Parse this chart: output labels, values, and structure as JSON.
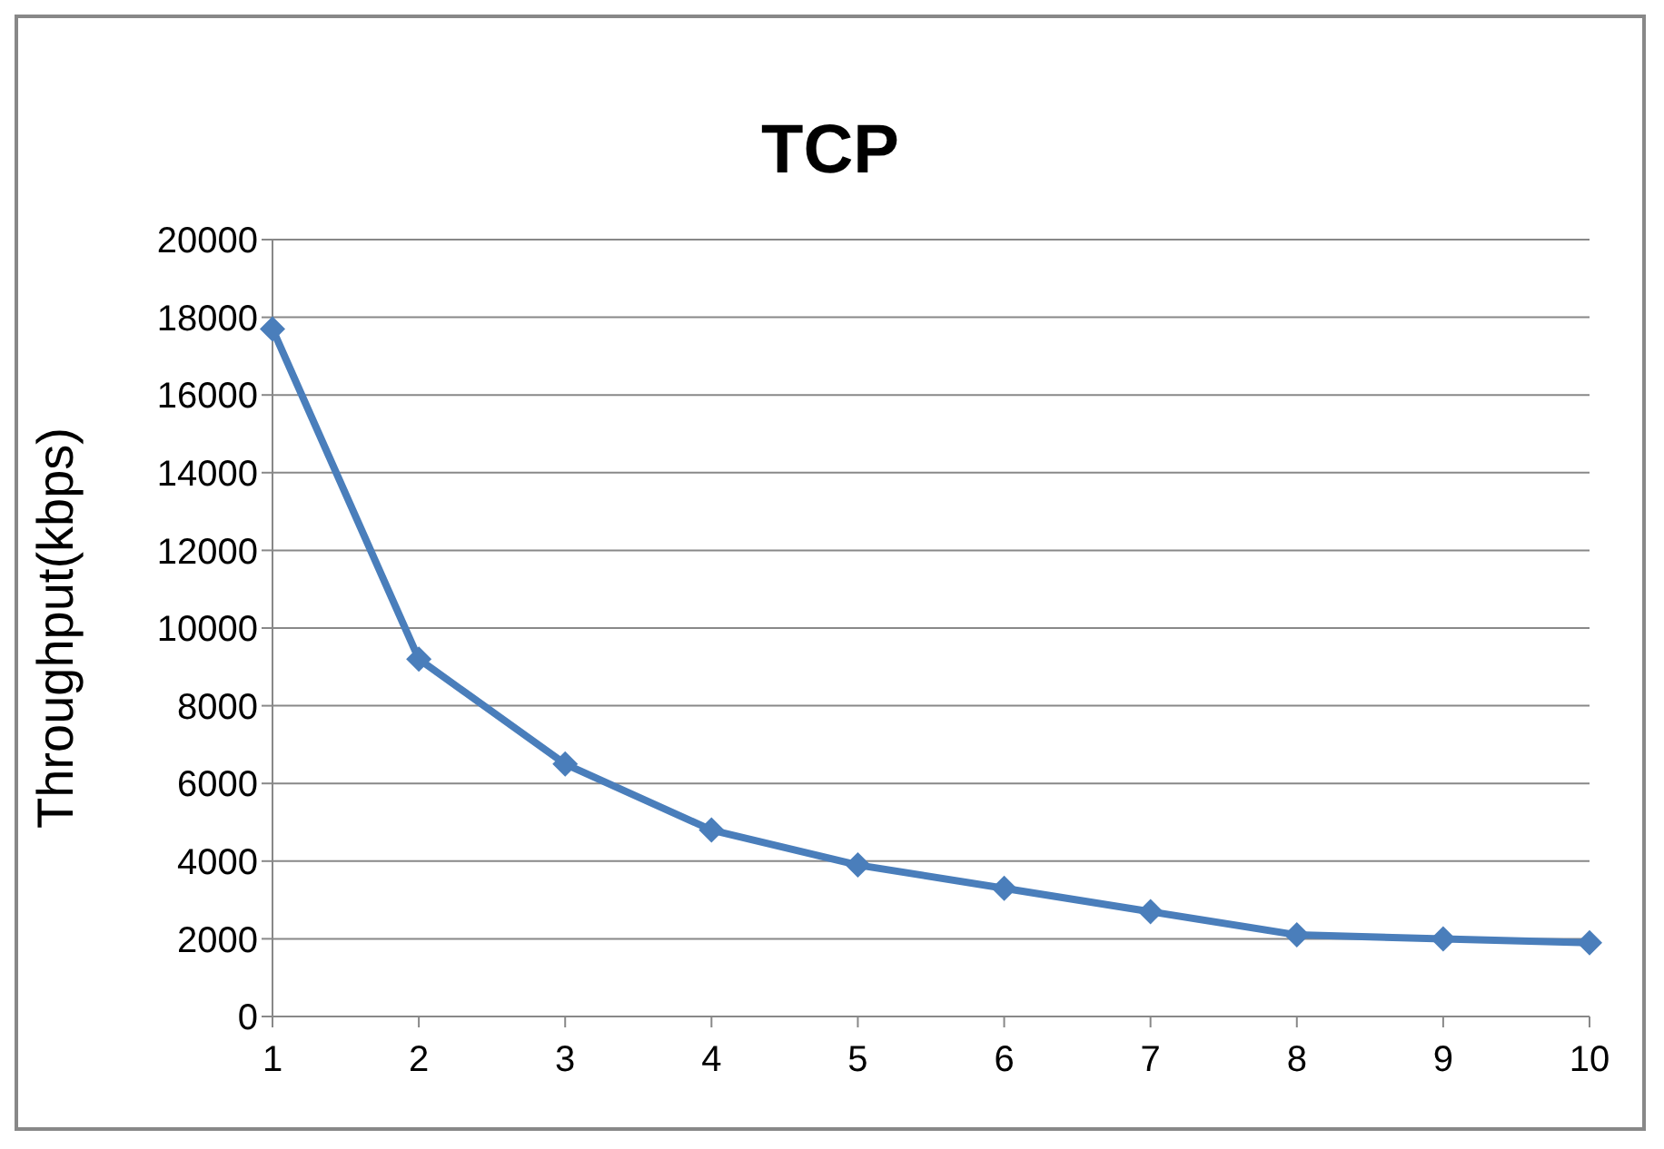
{
  "chart_data": {
    "type": "line",
    "title": "TCP",
    "ylabel": "Throughput(kbps)",
    "categories": [
      "1",
      "2",
      "3",
      "4",
      "5",
      "6",
      "7",
      "8",
      "9",
      "10"
    ],
    "series": [
      {
        "color": "#4a7ebb",
        "values": [
          17700,
          9200,
          6500,
          4800,
          3900,
          3300,
          2700,
          2100,
          2000,
          1900
        ]
      }
    ],
    "ylim": [
      0,
      20000
    ],
    "yticks": [
      0,
      2000,
      4000,
      6000,
      8000,
      10000,
      12000,
      14000,
      16000,
      18000,
      20000
    ],
    "grid": "y",
    "marker": "diamond",
    "line_style": "solid",
    "legend": false
  }
}
